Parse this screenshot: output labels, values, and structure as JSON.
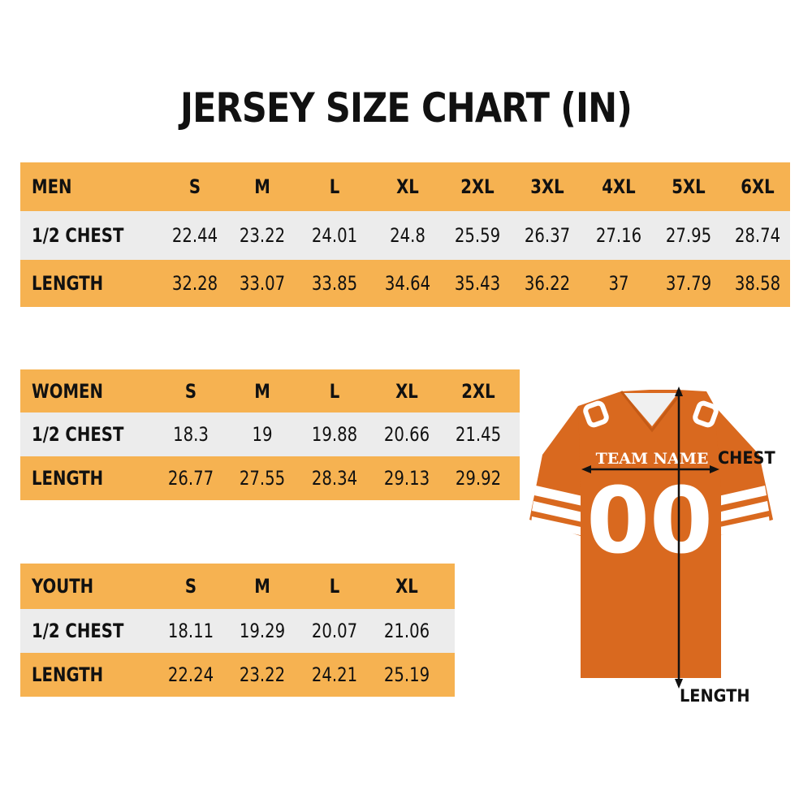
{
  "title": "JERSEY SIZE CHART (IN)",
  "colors": {
    "header_row": "#f6b251",
    "alt_row": "#ececec",
    "jersey": "#d9691f",
    "text": "#111111"
  },
  "tables": [
    {
      "group": "MEN",
      "sizes": [
        "S",
        "M",
        "L",
        "XL",
        "2XL",
        "3XL",
        "4XL",
        "5XL",
        "6XL"
      ],
      "rows": [
        {
          "label": "1/2 CHEST",
          "values": [
            "22.44",
            "23.22",
            "24.01",
            "24.8",
            "25.59",
            "26.37",
            "27.16",
            "27.95",
            "28.74"
          ]
        },
        {
          "label": "LENGTH",
          "values": [
            "32.28",
            "33.07",
            "33.85",
            "34.64",
            "35.43",
            "36.22",
            "37",
            "37.79",
            "38.58"
          ]
        }
      ]
    },
    {
      "group": "WOMEN",
      "sizes": [
        "S",
        "M",
        "L",
        "XL",
        "2XL"
      ],
      "rows": [
        {
          "label": "1/2 CHEST",
          "values": [
            "18.3",
            "19",
            "19.88",
            "20.66",
            "21.45"
          ]
        },
        {
          "label": "LENGTH",
          "values": [
            "26.77",
            "27.55",
            "28.34",
            "29.13",
            "29.92"
          ]
        }
      ]
    },
    {
      "group": "YOUTH",
      "sizes": [
        "S",
        "M",
        "L",
        "XL"
      ],
      "rows": [
        {
          "label": "1/2 CHEST",
          "values": [
            "18.11",
            "19.29",
            "20.07",
            "21.06"
          ]
        },
        {
          "label": "LENGTH",
          "values": [
            "22.24",
            "23.22",
            "24.21",
            "25.19"
          ]
        }
      ]
    }
  ],
  "jersey": {
    "team_name": "TEAM NAME",
    "number": "00",
    "chest_label": "CHEST",
    "length_label": "LENGTH"
  }
}
